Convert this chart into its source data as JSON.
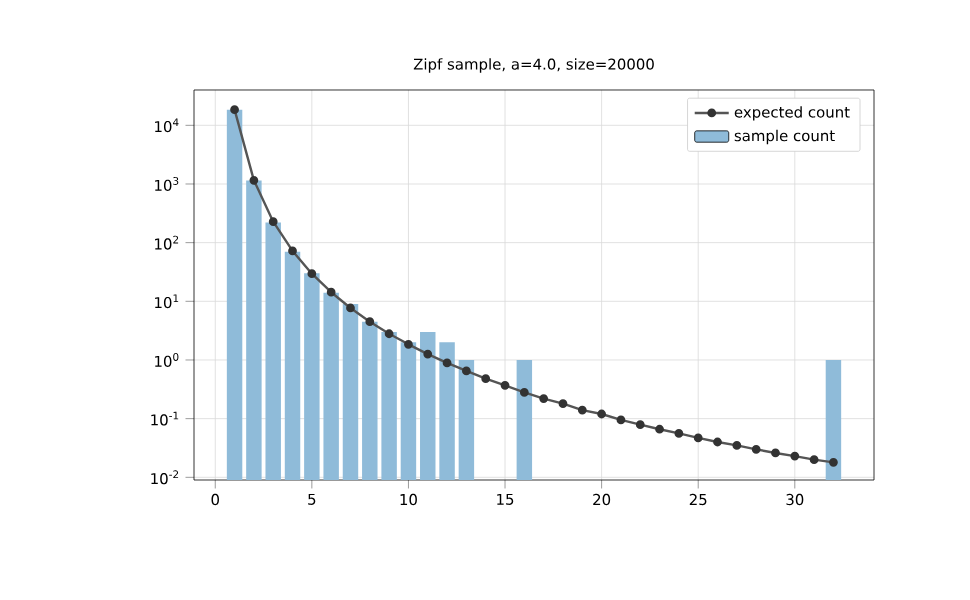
{
  "chart_data": {
    "type": "bar",
    "title": "Zipf sample, a=4.0, size=20000",
    "series": [
      {
        "name": "sample count",
        "color": "#8fbbd9",
        "x": [
          1,
          2,
          3,
          4,
          5,
          6,
          7,
          8,
          9,
          10,
          11,
          12,
          13,
          16,
          32
        ],
        "values": [
          18500,
          1150,
          220,
          70,
          30,
          14,
          9,
          4.5,
          3,
          2,
          3,
          2,
          1,
          1,
          1
        ]
      },
      {
        "name": "expected count",
        "type": "line",
        "color": "#555555",
        "marker": "circle",
        "x": [
          1,
          2,
          3,
          4,
          5,
          6,
          7,
          8,
          9,
          10,
          11,
          12,
          13,
          14,
          15,
          16,
          17,
          18,
          19,
          20,
          21,
          22,
          23,
          24,
          25,
          26,
          27,
          28,
          29,
          30,
          31,
          32
        ],
        "values": [
          18478,
          1155,
          228,
          72.2,
          29.6,
          14.3,
          7.7,
          4.5,
          2.8,
          1.85,
          1.26,
          0.89,
          0.65,
          0.48,
          0.37,
          0.28,
          0.22,
          0.18,
          0.14,
          0.12,
          0.095,
          0.079,
          0.066,
          0.056,
          0.047,
          0.04,
          0.035,
          0.03,
          0.026,
          0.023,
          0.02,
          0.018
        ]
      }
    ],
    "log": "y",
    "grid": true,
    "legend": "top right",
    "xlim": [
      -1.1,
      34.1
    ],
    "ylim": [
      0.009,
      40000
    ],
    "xticks": [
      0,
      5,
      10,
      15,
      20,
      25,
      30
    ],
    "yticks": [
      {
        "value": 0.01,
        "label": "10$^{-2}$"
      },
      {
        "value": 0.1,
        "label": "10$^{-1}$"
      },
      {
        "value": 1,
        "label": "10$^{0}$"
      },
      {
        "value": 10,
        "label": "10$^{1}$"
      },
      {
        "value": 100,
        "label": "10$^{2}$"
      },
      {
        "value": 1000,
        "label": "10$^{3}$"
      },
      {
        "value": 10000,
        "label": "10$^{4}$"
      }
    ]
  }
}
